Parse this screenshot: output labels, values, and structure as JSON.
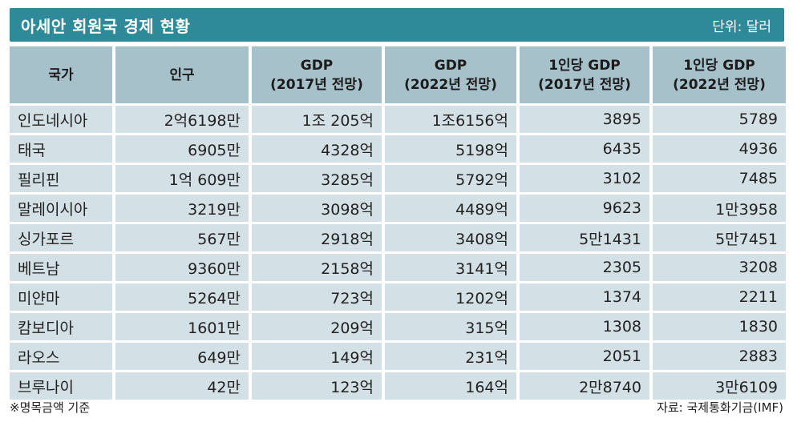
{
  "title": "아세안 회원국 경제 현황",
  "unit": "단위: 달러",
  "headers": [
    {
      "line1": "국가",
      "line2": ""
    },
    {
      "line1": "인구",
      "line2": ""
    },
    {
      "line1": "GDP",
      "line2": "(2017년 전망)"
    },
    {
      "line1": "GDP",
      "line2": "(2022년 전망)"
    },
    {
      "line1": "1인당 GDP",
      "line2": "(2017년 전망)"
    },
    {
      "line1": "1인당 GDP",
      "line2": "(2022년 전망)"
    }
  ],
  "rows": [
    [
      "인도네시아",
      "2억6198만",
      "1조 205억",
      "1조6156억",
      "3895",
      "5789"
    ],
    [
      "태국",
      "6905만",
      "4328억",
      "5198억",
      "6435",
      "4936"
    ],
    [
      "필리핀",
      "1억 609만",
      "3285억",
      "5792억",
      "3102",
      "7485"
    ],
    [
      "말레이시아",
      "3219만",
      "3098억",
      "4489억",
      "9623",
      "1만3958"
    ],
    [
      "싱가포르",
      "567만",
      "2918억",
      "3408억",
      "5만1431",
      "5만7451"
    ],
    [
      "베트남",
      "9360만",
      "2158억",
      "3141억",
      "2305",
      "3208"
    ],
    [
      "미얀마",
      "5264만",
      "723억",
      "1202억",
      "1374",
      "2211"
    ],
    [
      "캄보디아",
      "1601만",
      "209억",
      "315억",
      "1308",
      "1830"
    ],
    [
      "라오스",
      "649만",
      "149억",
      "231억",
      "2051",
      "2883"
    ],
    [
      "브루나이",
      "42만",
      "123억",
      "164억",
      "2만8740",
      "3만6109"
    ]
  ],
  "footnote": "※명목금액 기준",
  "source": "자료: 국제통화기금(IMF)",
  "colors": {
    "title_bar": "#2e8a98",
    "header_cell": "#a7c1cb",
    "body_cell": "#d3e0e6"
  }
}
